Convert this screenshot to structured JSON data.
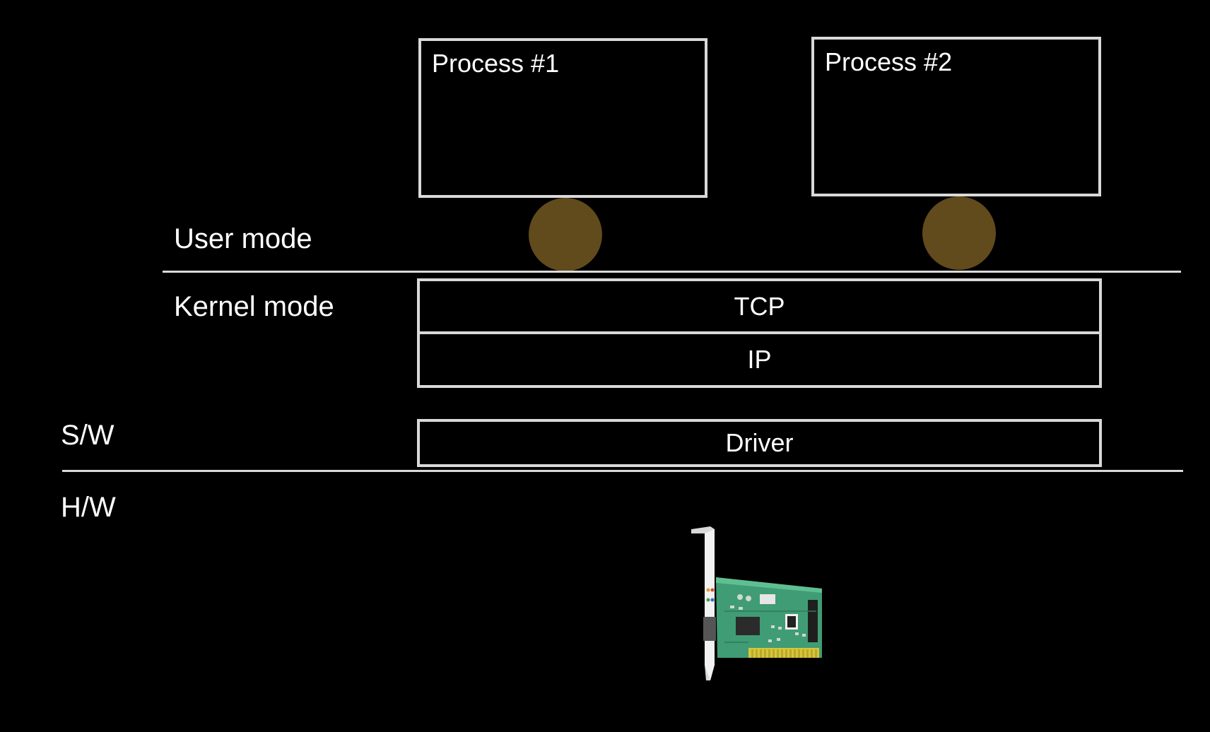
{
  "modes": {
    "user_label": "User mode",
    "kernel_label": "Kernel mode"
  },
  "domains": {
    "software_label": "S/W",
    "hardware_label": "H/W"
  },
  "processes": [
    {
      "title": "Process #1"
    },
    {
      "title": "Process #2"
    }
  ],
  "layers": {
    "tcp": "TCP",
    "ip": "IP",
    "driver": "Driver"
  },
  "icons": {
    "socket": "socket-circle-icon",
    "hardware": "network-interface-card-icon"
  },
  "colors": {
    "background": "#000000",
    "border": "#d9d9d9",
    "socket": "#614a1c",
    "text": "#ffffff"
  }
}
